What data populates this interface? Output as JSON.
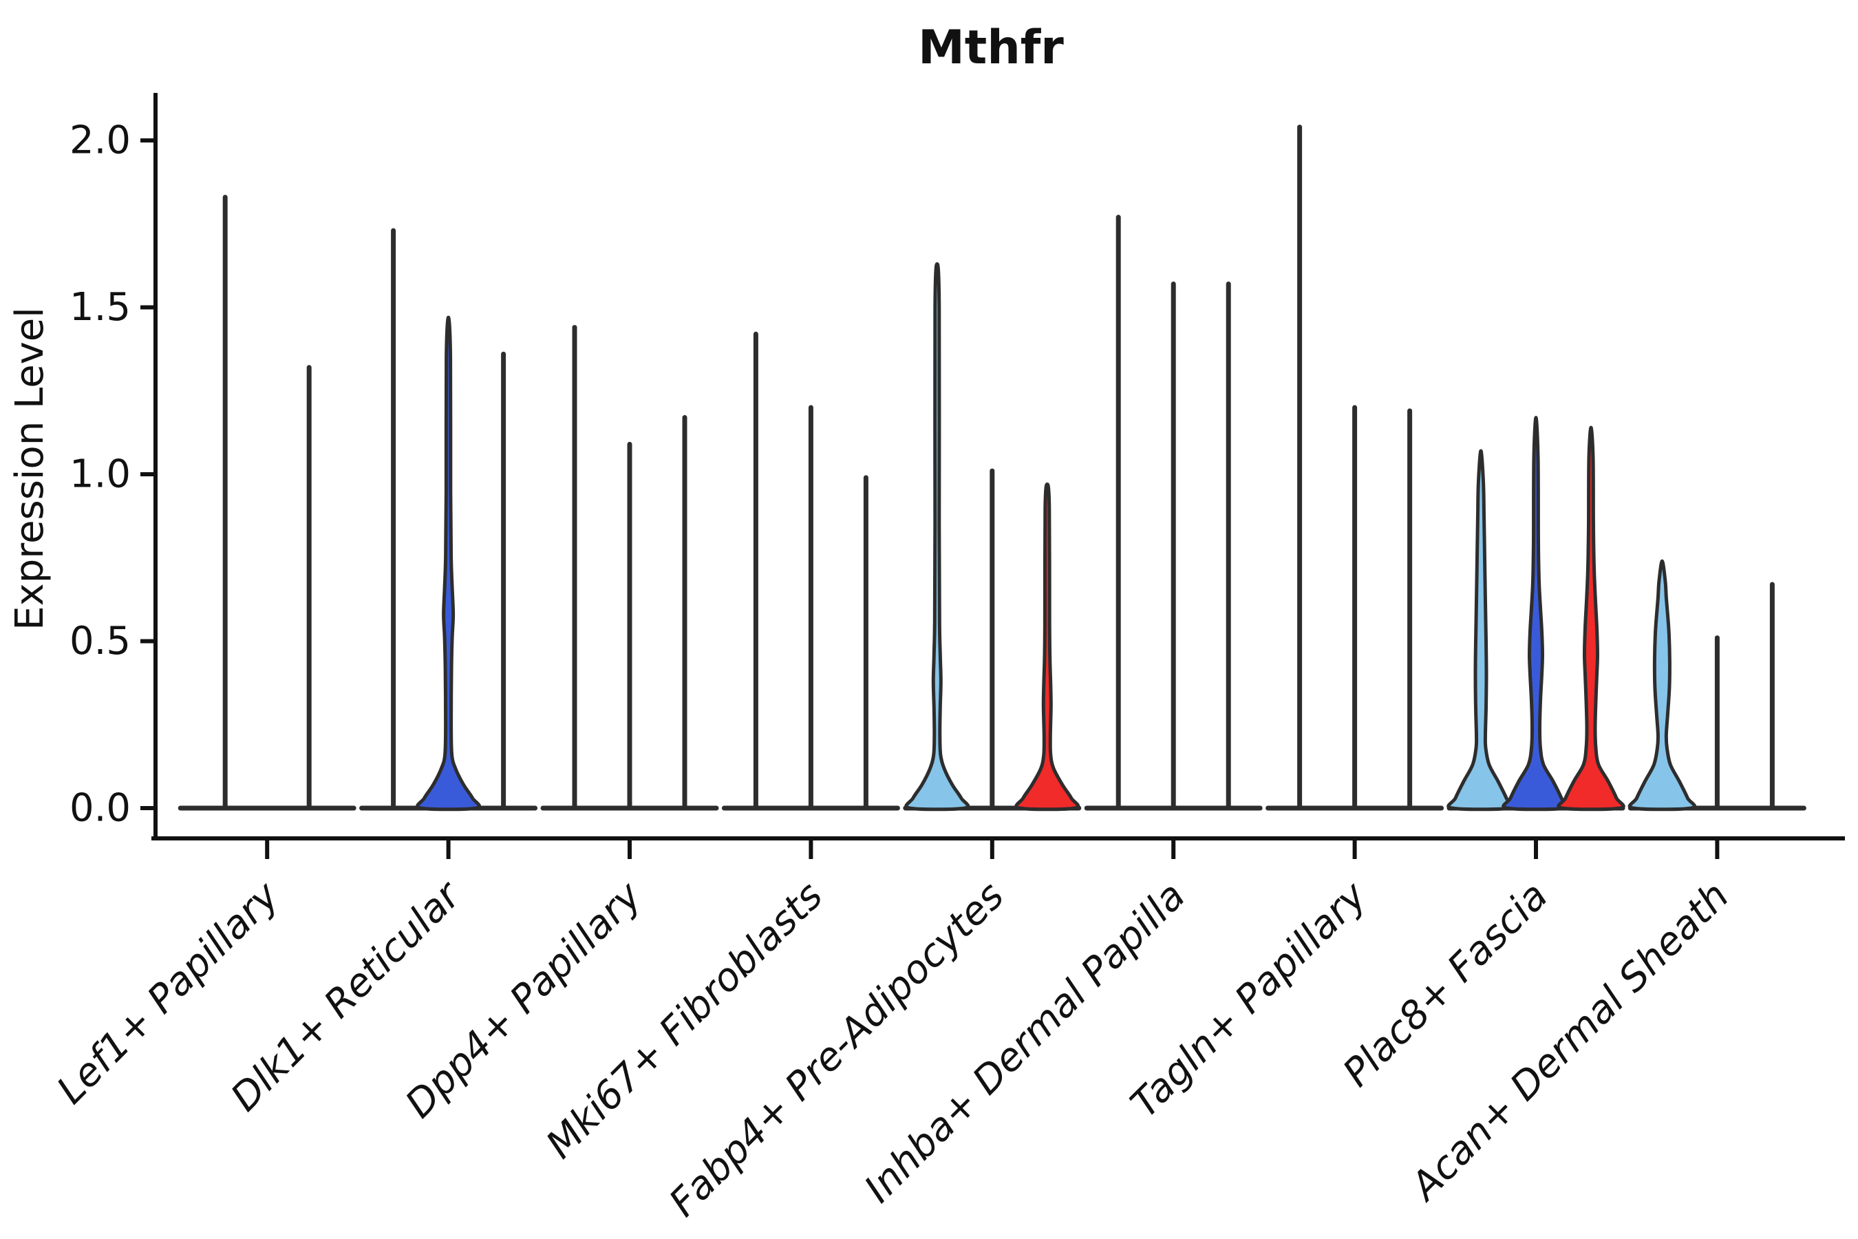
{
  "chart_data": {
    "type": "violin",
    "title": "Mthfr",
    "ylabel": "Expression Level",
    "xlabel": "",
    "ytick_labels": [
      "0.0",
      "0.5",
      "1.0",
      "1.5",
      "2.0"
    ],
    "ytick_values": [
      0.0,
      0.5,
      1.0,
      1.5,
      2.0
    ],
    "ylim": [
      -0.1,
      2.14
    ],
    "grid": false,
    "legend": "none",
    "xtick_rotation": 45,
    "colors": {
      "lightblue": "#87C4E9",
      "blue": "#3A5BD9",
      "red": "#F12A2A",
      "outline": "#2D2D2D",
      "axis": "#111111",
      "text": "#111111"
    },
    "categories": [
      {
        "label": "Lef1+ Papillary",
        "violins": [
          {
            "slot": 0,
            "max": 1.83,
            "color": null
          },
          {
            "slot": 1,
            "max": 1.32,
            "color": null
          }
        ]
      },
      {
        "label": "Dlk1+ Reticular",
        "violins": [
          {
            "slot": 0,
            "max": 1.73,
            "color": null
          },
          {
            "slot": 1,
            "max": 1.47,
            "color": "blue",
            "profile": [
              [
                0,
                40
              ],
              [
                0.03,
                35
              ],
              [
                0.07,
                22
              ],
              [
                0.12,
                10
              ],
              [
                0.16,
                5
              ],
              [
                0.25,
                4
              ],
              [
                0.42,
                4.5
              ],
              [
                0.51,
                5.5
              ],
              [
                0.58,
                7
              ],
              [
                0.66,
                5.5
              ],
              [
                0.75,
                4
              ],
              [
                0.95,
                3.2
              ],
              [
                1.35,
                3
              ],
              [
                1.47,
                0
              ]
            ]
          },
          {
            "slot": 2,
            "max": 1.36,
            "color": null
          }
        ]
      },
      {
        "label": "Dpp4+ Papillary",
        "violins": [
          {
            "slot": 0,
            "max": 1.44,
            "color": null
          },
          {
            "slot": 1,
            "max": 1.09,
            "color": null
          },
          {
            "slot": 2,
            "max": 1.17,
            "color": null
          }
        ]
      },
      {
        "label": "Mki67+ Fibroblasts",
        "violins": [
          {
            "slot": 0,
            "max": 1.42,
            "color": null
          },
          {
            "slot": 1,
            "max": 1.2,
            "color": null
          },
          {
            "slot": 2,
            "max": 0.99,
            "color": null
          }
        ]
      },
      {
        "label": "Fabp4+ Pre-Adipocytes",
        "violins": [
          {
            "slot": 0,
            "max": 1.63,
            "color": "lightblue",
            "profile": [
              [
                0,
                40
              ],
              [
                0.03,
                35
              ],
              [
                0.07,
                22
              ],
              [
                0.12,
                10
              ],
              [
                0.16,
                5
              ],
              [
                0.22,
                4
              ],
              [
                0.3,
                4.5
              ],
              [
                0.38,
                5.5
              ],
              [
                0.46,
                4.5
              ],
              [
                0.56,
                3.5
              ],
              [
                0.85,
                3
              ],
              [
                1.5,
                3
              ],
              [
                1.63,
                0
              ]
            ]
          },
          {
            "slot": 1,
            "max": 1.01,
            "color": null
          },
          {
            "slot": 2,
            "max": 0.97,
            "color": "red",
            "profile": [
              [
                0,
                40
              ],
              [
                0.03,
                35
              ],
              [
                0.07,
                22
              ],
              [
                0.12,
                9
              ],
              [
                0.16,
                5
              ],
              [
                0.21,
                4.5
              ],
              [
                0.26,
                5
              ],
              [
                0.31,
                5.5
              ],
              [
                0.37,
                5
              ],
              [
                0.44,
                4
              ],
              [
                0.55,
                3.4
              ],
              [
                0.9,
                3
              ],
              [
                0.97,
                0
              ]
            ]
          }
        ]
      },
      {
        "label": "Inhba+ Dermal Papilla",
        "violins": [
          {
            "slot": 0,
            "max": 1.77,
            "color": null
          },
          {
            "slot": 1,
            "max": 1.57,
            "color": null
          },
          {
            "slot": 2,
            "max": 1.57,
            "color": null
          }
        ]
      },
      {
        "label": "Tagln+ Papillary",
        "violins": [
          {
            "slot": 0,
            "max": 2.04,
            "color": null
          },
          {
            "slot": 1,
            "max": 1.2,
            "color": null
          },
          {
            "slot": 2,
            "max": 1.19,
            "color": null
          }
        ]
      },
      {
        "label": "Plac8+ Fascia",
        "violins": [
          {
            "slot": 0,
            "max": 1.07,
            "color": "lightblue",
            "profile": [
              [
                0,
                42
              ],
              [
                0.03,
                37
              ],
              [
                0.08,
                25
              ],
              [
                0.13,
                12
              ],
              [
                0.18,
                7
              ],
              [
                0.22,
                6.5
              ],
              [
                0.3,
                7.5
              ],
              [
                0.4,
                8
              ],
              [
                0.5,
                7.5
              ],
              [
                0.62,
                6.5
              ],
              [
                0.75,
                5.5
              ],
              [
                0.88,
                4.5
              ],
              [
                0.98,
                3.5
              ],
              [
                1.07,
                0
              ]
            ]
          },
          {
            "slot": 1,
            "max": 1.17,
            "color": "blue",
            "profile": [
              [
                0,
                42
              ],
              [
                0.03,
                37
              ],
              [
                0.08,
                25
              ],
              [
                0.13,
                11
              ],
              [
                0.18,
                6.5
              ],
              [
                0.24,
                5.5
              ],
              [
                0.32,
                6.5
              ],
              [
                0.4,
                8.5
              ],
              [
                0.46,
                9.5
              ],
              [
                0.53,
                8.5
              ],
              [
                0.6,
                6.5
              ],
              [
                0.68,
                4.5
              ],
              [
                0.8,
                3.5
              ],
              [
                1.05,
                3
              ],
              [
                1.17,
                0
              ]
            ]
          },
          {
            "slot": 2,
            "max": 1.14,
            "color": "red",
            "profile": [
              [
                0,
                42
              ],
              [
                0.03,
                37
              ],
              [
                0.08,
                25
              ],
              [
                0.13,
                11
              ],
              [
                0.18,
                7
              ],
              [
                0.24,
                6
              ],
              [
                0.32,
                7
              ],
              [
                0.4,
                8.5
              ],
              [
                0.46,
                9.5
              ],
              [
                0.54,
                8.5
              ],
              [
                0.62,
                6.5
              ],
              [
                0.72,
                4.5
              ],
              [
                0.85,
                3.5
              ],
              [
                1.05,
                3
              ],
              [
                1.14,
                0
              ]
            ]
          }
        ]
      },
      {
        "label": "Acan+ Dermal Sheath",
        "violins": [
          {
            "slot": 0,
            "max": 0.74,
            "color": "lightblue",
            "profile": [
              [
                0,
                42
              ],
              [
                0.03,
                37
              ],
              [
                0.08,
                25
              ],
              [
                0.13,
                12
              ],
              [
                0.18,
                7
              ],
              [
                0.22,
                6
              ],
              [
                0.28,
                8
              ],
              [
                0.36,
                10.5
              ],
              [
                0.44,
                11
              ],
              [
                0.52,
                10
              ],
              [
                0.58,
                8
              ],
              [
                0.63,
                6
              ],
              [
                0.68,
                4.5
              ],
              [
                0.74,
                0
              ]
            ]
          },
          {
            "slot": 1,
            "max": 0.51,
            "color": null
          },
          {
            "slot": 2,
            "max": 0.67,
            "color": null
          }
        ]
      }
    ]
  }
}
